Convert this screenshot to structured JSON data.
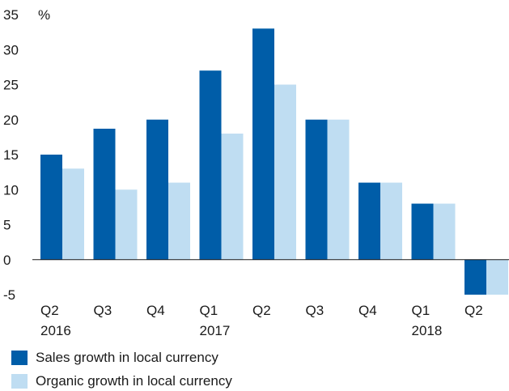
{
  "chart_data": {
    "type": "bar",
    "unit_label": "%",
    "categories": [
      "Q2",
      "Q3",
      "Q4",
      "Q1",
      "Q2",
      "Q3",
      "Q4",
      "Q1",
      "Q2"
    ],
    "year_labels": [
      "2016",
      "",
      "",
      "2017",
      "",
      "",
      "",
      "2018",
      ""
    ],
    "series": [
      {
        "name": "Sales growth in local currency",
        "color": "#005DA8",
        "values": [
          15,
          18.7,
          20,
          27,
          33,
          20,
          11,
          8,
          -5
        ]
      },
      {
        "name": "Organic growth in local currency",
        "color": "#BFDDF2",
        "values": [
          13,
          10,
          11,
          18,
          25,
          20,
          11,
          8,
          -5
        ]
      }
    ],
    "yticks": [
      35,
      30,
      25,
      20,
      15,
      10,
      5,
      0,
      -5
    ],
    "ylim": [
      -5,
      35
    ],
    "grid": false,
    "legend_position": "bottom-left"
  }
}
